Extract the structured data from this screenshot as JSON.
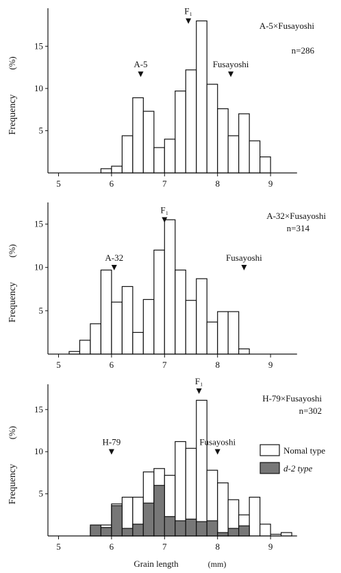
{
  "figure": {
    "xlabel": "Grain length",
    "xunit": "(mm)"
  },
  "chart_data": [
    {
      "type": "bar",
      "title": "A-5×Fusayoshi",
      "n_label": "n=286",
      "ylabel": "Frequency",
      "yunit": "(%)",
      "xlim": [
        4.8,
        10.2
      ],
      "ylim": [
        0,
        19.5
      ],
      "xticks": [
        5,
        6,
        7,
        8,
        9
      ],
      "yticks": [
        5,
        10,
        15
      ],
      "bin_width": 0.2,
      "bin_starts": [
        5.8,
        6.0,
        6.2,
        6.4,
        6.6,
        6.8,
        7.0,
        7.2,
        7.4,
        7.6,
        7.8,
        8.0,
        8.2,
        8.4,
        8.6,
        8.8
      ],
      "series": [
        {
          "values": [
            0.5,
            0.8,
            4.4,
            8.9,
            7.3,
            3.0,
            4.0,
            9.7,
            12.2,
            18.0,
            10.5,
            7.6,
            4.4,
            7.0,
            3.8,
            1.9
          ]
        }
      ],
      "markers": [
        {
          "label": "A-5",
          "x": 6.55,
          "y": 11.6
        },
        {
          "label": "F₁",
          "x": 7.45,
          "y": 17.9
        },
        {
          "label": "Fusayoshi",
          "x": 8.25,
          "y": 11.6
        }
      ]
    },
    {
      "type": "bar",
      "title": "A-32×Fusayoshi",
      "n_label": "n=314",
      "ylabel": "Frequency",
      "yunit": "(%)",
      "xlim": [
        4.8,
        10.2
      ],
      "ylim": [
        0,
        17.5
      ],
      "xticks": [
        5,
        6,
        7,
        8,
        9
      ],
      "yticks": [
        5,
        10,
        15
      ],
      "bin_width": 0.2,
      "bin_starts": [
        5.2,
        5.4,
        5.6,
        5.8,
        6.0,
        6.2,
        6.4,
        6.6,
        6.8,
        7.0,
        7.2,
        7.4,
        7.6,
        7.8,
        8.0,
        8.2,
        8.4
      ],
      "series": [
        {
          "values": [
            0.3,
            1.6,
            3.5,
            9.7,
            6.0,
            7.8,
            2.5,
            6.3,
            12.0,
            15.5,
            9.7,
            6.2,
            8.7,
            3.7,
            4.9,
            4.9,
            0.6
          ]
        }
      ],
      "markers": [
        {
          "label": "A-32",
          "x": 6.05,
          "y": 9.9
        },
        {
          "label": "F₁",
          "x": 7.0,
          "y": 15.4
        },
        {
          "label": "Fusayoshi",
          "x": 8.5,
          "y": 9.9
        }
      ]
    },
    {
      "type": "bar",
      "title": "H-79×Fusayoshi",
      "n_label": "n=302",
      "ylabel": "Frequency",
      "yunit": "(%)",
      "xlim": [
        4.8,
        10.2
      ],
      "ylim": [
        0,
        18.0
      ],
      "xticks": [
        5,
        6,
        7,
        8,
        9
      ],
      "yticks": [
        5,
        10,
        15
      ],
      "bin_width": 0.2,
      "bin_starts": [
        5.6,
        5.8,
        6.0,
        6.2,
        6.4,
        6.6,
        6.8,
        7.0,
        7.2,
        7.4,
        7.6,
        7.8,
        8.0,
        8.2,
        8.4,
        8.6,
        8.8,
        9.0,
        9.2
      ],
      "legend_position": "right",
      "series": [
        {
          "name": "Nomal type",
          "fill": "#ffffff",
          "values": [
            1.0,
            1.3,
            3.8,
            4.6,
            4.6,
            7.6,
            8.0,
            7.2,
            11.2,
            10.4,
            16.1,
            7.8,
            6.3,
            4.3,
            2.5,
            4.6,
            1.4,
            0.2,
            0.4
          ]
        },
        {
          "name": "d-2 type",
          "fill": "#777777",
          "values": [
            1.3,
            1.0,
            3.6,
            0.9,
            1.4,
            3.9,
            6.0,
            2.3,
            1.8,
            2.0,
            1.7,
            1.8,
            0.4,
            0.9,
            1.2,
            0.0,
            0.0,
            0.0,
            0.0
          ]
        }
      ],
      "markers": [
        {
          "label": "H-79",
          "x": 6.0,
          "y": 9.9
        },
        {
          "label": "F₁",
          "x": 7.65,
          "y": 17.1
        },
        {
          "label": "Fusayoshi",
          "x": 8.0,
          "y": 9.9
        }
      ]
    }
  ]
}
